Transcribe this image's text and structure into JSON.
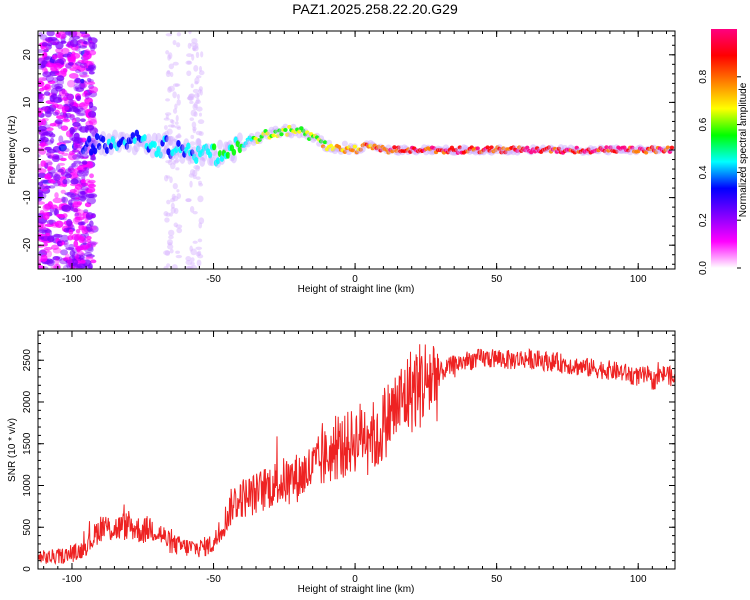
{
  "title": "PAZ1.2025.258.22.20.G29",
  "chart_data": [
    {
      "type": "heatmap",
      "xlabel": "Height of straight line (km)",
      "ylabel": "Frequency (Hz)",
      "xlim": [
        -112,
        113
      ],
      "ylim": [
        -25,
        25
      ],
      "xticks": [
        -100,
        -50,
        0,
        50,
        100
      ],
      "yticks": [
        -20,
        -10,
        0,
        10,
        20
      ],
      "grid": false,
      "colorbar": {
        "label": "Normalized spectral amplitude",
        "ticks": [
          "0.0",
          "0.2",
          "0.4",
          "0.6",
          "0.8"
        ],
        "range": [
          0,
          1
        ],
        "colormap": [
          "#ffffff",
          "#ff00ff",
          "#8000ff",
          "#0000ff",
          "#00ffff",
          "#00ff00",
          "#ffff00",
          "#ff8000",
          "#ff0000",
          "#ff0080"
        ]
      },
      "ridge": {
        "x": [
          -95,
          -90,
          -85,
          -80,
          -75,
          -70,
          -65,
          -60,
          -55,
          -50,
          -45,
          -40,
          -35,
          -30,
          -25,
          -20,
          -15,
          -10,
          -5,
          0,
          5,
          10,
          20,
          40,
          60,
          80,
          100,
          110
        ],
        "freq": [
          1,
          1.5,
          2,
          2,
          1.5,
          1,
          0.5,
          0,
          -0.5,
          -1,
          -0.5,
          1,
          2.5,
          3.5,
          4,
          4,
          2.5,
          1,
          0.5,
          0,
          1,
          0,
          0,
          0,
          0,
          0,
          0,
          0
        ],
        "amplitude": [
          0.3,
          0.35,
          0.4,
          0.35,
          0.4,
          0.45,
          0.4,
          0.4,
          0.45,
          0.5,
          0.5,
          0.5,
          0.6,
          0.6,
          0.65,
          0.6,
          0.6,
          0.7,
          0.75,
          0.8,
          0.8,
          0.85,
          0.9,
          0.9,
          0.95,
          0.95,
          0.9,
          0.9
        ]
      }
    },
    {
      "type": "line",
      "xlabel": "Height of straight line (km)",
      "ylabel": "SNR (10 * v/v)",
      "xlim": [
        -112,
        113
      ],
      "ylim": [
        0,
        2850
      ],
      "xticks": [
        -100,
        -50,
        0,
        50,
        100
      ],
      "yticks": [
        0,
        500,
        1000,
        1500,
        2000,
        2500
      ],
      "color": "#ee2222",
      "series": [
        {
          "x": [
            -112,
            -105,
            -100,
            -97,
            -93,
            -90,
            -85,
            -80,
            -75,
            -72,
            -68,
            -65,
            -60,
            -55,
            -50,
            -47,
            -43,
            -40,
            -35,
            -30,
            -25,
            -20,
            -15,
            -10,
            -5,
            0,
            5,
            8,
            10,
            15,
            20,
            25,
            30,
            35,
            40,
            45,
            50,
            55,
            60,
            65,
            70,
            75,
            80,
            85,
            90,
            95,
            100,
            103,
            105,
            107,
            110,
            113
          ],
          "y": [
            130,
            150,
            180,
            220,
            350,
            500,
            480,
            520,
            450,
            500,
            400,
            300,
            260,
            250,
            300,
            500,
            800,
            850,
            900,
            1000,
            1050,
            1100,
            1200,
            1350,
            1450,
            1550,
            1700,
            1500,
            1750,
            1950,
            2150,
            2250,
            2350,
            2450,
            2500,
            2520,
            2520,
            2500,
            2520,
            2500,
            2480,
            2450,
            2420,
            2400,
            2380,
            2350,
            2300,
            2320,
            2250,
            2300,
            2350,
            2250
          ]
        }
      ]
    }
  ]
}
